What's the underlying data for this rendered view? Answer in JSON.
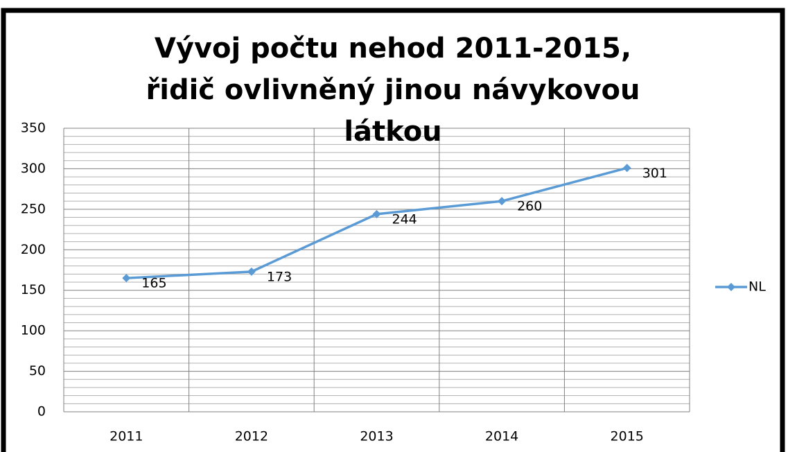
{
  "chart_data": {
    "type": "line",
    "title": "Vývoj počtu nehod 2011-2015, řidič ovlivněný jinou návykovou látkou",
    "categories": [
      "2011",
      "2012",
      "2013",
      "2014",
      "2015"
    ],
    "series": [
      {
        "name": "NL",
        "color": "#5b9bd5",
        "values": [
          165,
          173,
          244,
          260,
          301
        ]
      }
    ],
    "ylim": [
      0,
      350
    ],
    "yticks": [
      0,
      50,
      100,
      150,
      200,
      250,
      300,
      350
    ],
    "y_minor_ticks": [
      10,
      20,
      30,
      40,
      60,
      70,
      80,
      90,
      110,
      120,
      130,
      140,
      160,
      170,
      180,
      190,
      210,
      220,
      230,
      240,
      260,
      270,
      280,
      290,
      310,
      320,
      330,
      340
    ],
    "grid": true,
    "legend": "right",
    "data_labels": true
  }
}
